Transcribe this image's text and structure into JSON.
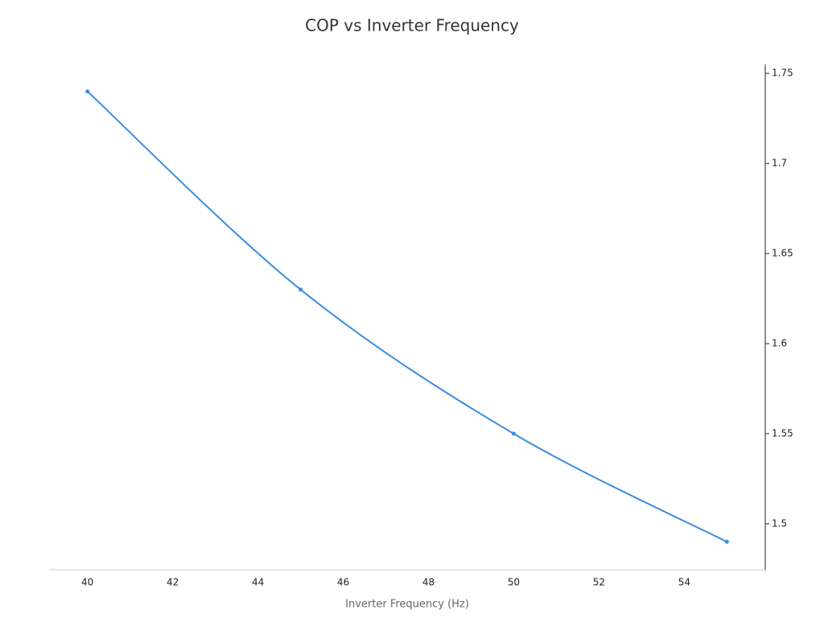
{
  "chart_data": {
    "type": "line",
    "title": "COP vs Inverter Frequency",
    "x_label": "Inverter Frequency (Hz)",
    "x": [
      40,
      45,
      50,
      55
    ],
    "series": [
      {
        "name": "COP",
        "color": "#3a8ee0",
        "values": [
          1.74,
          1.63,
          1.55,
          1.49
        ]
      }
    ],
    "xlim": [
      39.1,
      55.9
    ],
    "xticks": [
      40,
      42,
      44,
      46,
      48,
      50,
      52,
      54
    ],
    "ylim": [
      1.4745,
      1.755
    ],
    "yticks": [
      1.5,
      1.55,
      1.6,
      1.65,
      1.7,
      1.75
    ],
    "y_axis_side": "right",
    "smooth": true,
    "markers": true,
    "grid": false
  }
}
